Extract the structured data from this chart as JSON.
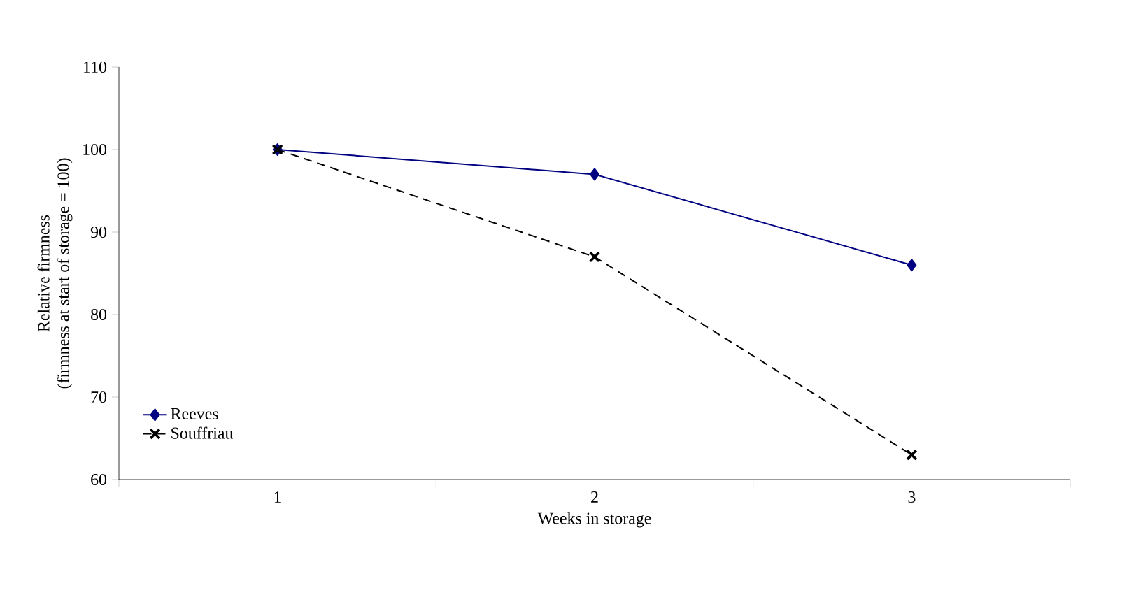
{
  "chart_data": {
    "type": "line",
    "xlabel": "Weeks in storage",
    "ylabel": "Relative firmness\n(firmness at start of storage = 100)",
    "categories": [
      "1",
      "2",
      "3"
    ],
    "series": [
      {
        "name": "Reeves",
        "color": "#000080",
        "values": [
          100,
          97,
          86
        ],
        "marker": "diamond",
        "line_style": "solid"
      },
      {
        "name": "Souffriau",
        "color": "#000000",
        "values": [
          100,
          87,
          63
        ],
        "marker": "cross",
        "line_style": "dashed"
      }
    ],
    "ylim": [
      60,
      110
    ],
    "yticks": [
      60,
      70,
      80,
      90,
      100,
      110
    ],
    "grid": false,
    "legend": "bottom left"
  }
}
